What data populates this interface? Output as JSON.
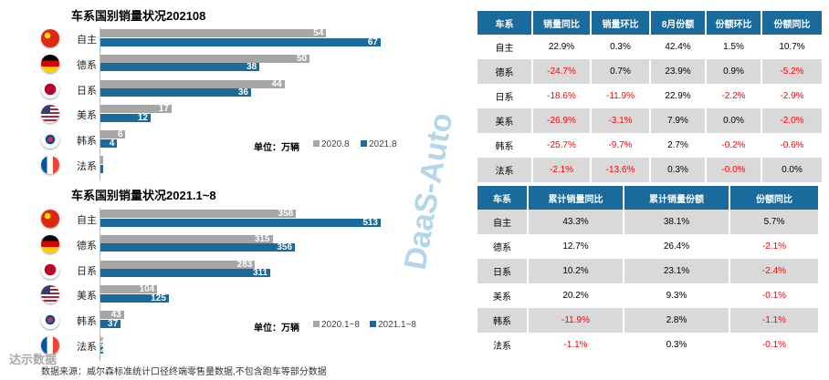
{
  "chart_data": [
    {
      "type": "bar",
      "title": "车系国别销量状况202108",
      "categories": [
        "自主",
        "德系",
        "日系",
        "美系",
        "韩系",
        "法系"
      ],
      "series": [
        {
          "name": "2020.8",
          "values": [
            54,
            50,
            44,
            17,
            6,
            0.2
          ]
        },
        {
          "name": "2021.8",
          "values": [
            67,
            38,
            36,
            12,
            4,
            0.2
          ]
        }
      ],
      "unit": "单位：万辆",
      "orientation": "horizontal",
      "colors": [
        "#a6a6a6",
        "#1a6a9b"
      ]
    },
    {
      "type": "bar",
      "title": "车系国别销量状况2021.1~8",
      "categories": [
        "自主",
        "德系",
        "日系",
        "美系",
        "韩系",
        "法系"
      ],
      "series": [
        {
          "name": "2020.1~8",
          "values": [
            358,
            315,
            283,
            104,
            43,
            2
          ]
        },
        {
          "name": "2021.1~8",
          "values": [
            513,
            356,
            311,
            125,
            37,
            2
          ]
        }
      ],
      "unit": "单位：万辆",
      "orientation": "horizontal",
      "colors": [
        "#a6a6a6",
        "#1a6a9b"
      ]
    }
  ],
  "flags": [
    "china-flag-icon",
    "germany-flag-icon",
    "japan-flag-icon",
    "usa-flag-icon",
    "korea-flag-icon",
    "france-flag-icon"
  ],
  "table1": {
    "headers": [
      "车系",
      "销量同比",
      "销量环比",
      "8月份额",
      "份额环比",
      "份额同比"
    ],
    "rows": [
      [
        "自主",
        "22.9%",
        "0.3%",
        "42.4%",
        "1.5%",
        "10.7%"
      ],
      [
        "德系",
        "-24.7%",
        "0.7%",
        "23.9%",
        "0.9%",
        "-5.2%"
      ],
      [
        "日系",
        "-18.6%",
        "-11.9%",
        "22.9%",
        "-2.2%",
        "-2.9%"
      ],
      [
        "美系",
        "-26.9%",
        "-3.1%",
        "7.9%",
        "0.0%",
        "-2.0%"
      ],
      [
        "韩系",
        "-25.7%",
        "-9.7%",
        "2.7%",
        "-0.2%",
        "-0.6%"
      ],
      [
        "法系",
        "-2.1%",
        "-13.6%",
        "0.3%",
        "-0.0%",
        "0.0%"
      ]
    ]
  },
  "table2": {
    "headers": [
      "车系",
      "累计销量同比",
      "累计销量份额",
      "份额同比"
    ],
    "rows": [
      [
        "自主",
        "43.3%",
        "38.1%",
        "5.7%"
      ],
      [
        "德系",
        "12.7%",
        "26.4%",
        "-2.1%"
      ],
      [
        "日系",
        "10.2%",
        "23.1%",
        "-2.4%"
      ],
      [
        "美系",
        "20.2%",
        "9.3%",
        "-0.1%"
      ],
      [
        "韩系",
        "-11.9%",
        "2.8%",
        "-1.1%"
      ],
      [
        "法系",
        "-1.1%",
        "0.3%",
        "-0.1%"
      ]
    ]
  },
  "watermark": "DaaS-Auto",
  "logo": "达示数据",
  "footnote": "数据来源：威尔森标准统计口径终端零售量数据,不包含跑车等部分数据"
}
